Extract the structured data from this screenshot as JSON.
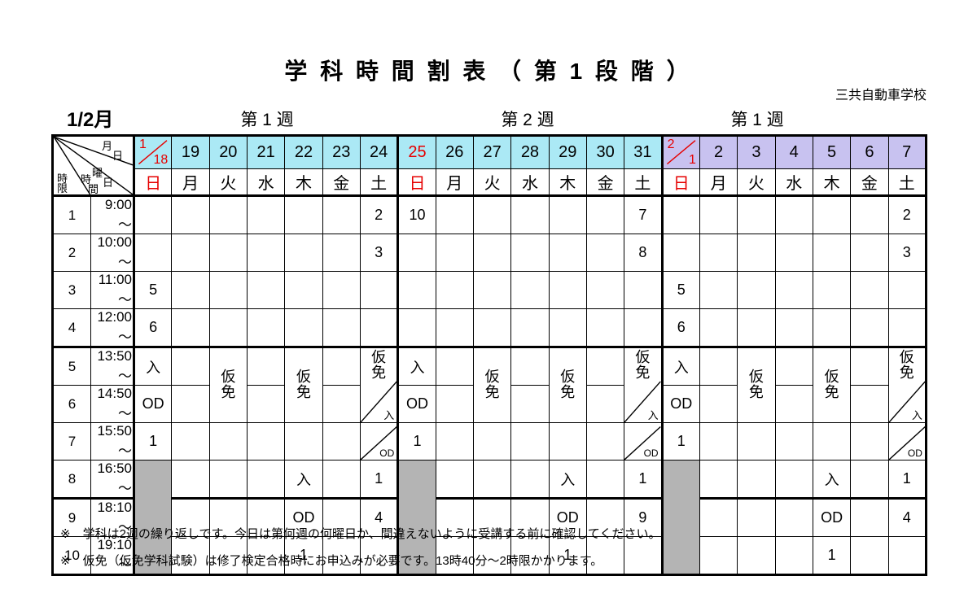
{
  "title": "学 科 時 間 割 表 （ 第 1 段 階 ）",
  "school_name": "三共自動車学校",
  "month_label": "1/2月",
  "week_labels": [
    "第 1 週",
    "第 2 週",
    "第 1 週"
  ],
  "corner_labels": {
    "month_day": "月日",
    "weekday": "曜日",
    "time": "時間",
    "period": "時限"
  },
  "colors": {
    "cyan": "#abe9f5",
    "purple": "#c8c2f0",
    "red": "#e60000",
    "gray": "#b4b4b4"
  },
  "date_row": [
    {
      "text": "1/18",
      "split": [
        "1",
        "18"
      ],
      "red": true,
      "bg": "cyan"
    },
    {
      "text": "19",
      "bg": "cyan"
    },
    {
      "text": "20",
      "bg": "cyan"
    },
    {
      "text": "21",
      "bg": "cyan"
    },
    {
      "text": "22",
      "bg": "cyan"
    },
    {
      "text": "23",
      "bg": "cyan"
    },
    {
      "text": "24",
      "bg": "cyan"
    },
    {
      "text": "25",
      "red": true,
      "bg": "cyan"
    },
    {
      "text": "26",
      "bg": "cyan"
    },
    {
      "text": "27",
      "bg": "cyan"
    },
    {
      "text": "28",
      "bg": "cyan"
    },
    {
      "text": "29",
      "bg": "cyan"
    },
    {
      "text": "30",
      "bg": "cyan"
    },
    {
      "text": "31",
      "bg": "cyan"
    },
    {
      "text": "2/1",
      "split": [
        "2",
        "1"
      ],
      "red": true,
      "bg": "purple"
    },
    {
      "text": "2",
      "bg": "purple"
    },
    {
      "text": "3",
      "bg": "purple"
    },
    {
      "text": "4",
      "bg": "purple"
    },
    {
      "text": "5",
      "bg": "purple"
    },
    {
      "text": "6",
      "bg": "purple"
    },
    {
      "text": "7",
      "bg": "purple"
    }
  ],
  "day_row": [
    {
      "text": "日",
      "red": true
    },
    {
      "text": "月"
    },
    {
      "text": "火"
    },
    {
      "text": "水"
    },
    {
      "text": "木"
    },
    {
      "text": "金"
    },
    {
      "text": "土"
    },
    {
      "text": "日",
      "red": true
    },
    {
      "text": "月"
    },
    {
      "text": "火"
    },
    {
      "text": "水"
    },
    {
      "text": "木"
    },
    {
      "text": "金"
    },
    {
      "text": "土"
    },
    {
      "text": "日",
      "red": true
    },
    {
      "text": "月"
    },
    {
      "text": "火"
    },
    {
      "text": "水"
    },
    {
      "text": "木"
    },
    {
      "text": "金"
    },
    {
      "text": "土"
    }
  ],
  "periods": [
    {
      "no": "1",
      "time": "9:00～"
    },
    {
      "no": "2",
      "time": "10:00～"
    },
    {
      "no": "3",
      "time": "11:00～"
    },
    {
      "no": "4",
      "time": "12:00～"
    },
    {
      "no": "5",
      "time": "13:50～"
    },
    {
      "no": "6",
      "time": "14:50～"
    },
    {
      "no": "7",
      "time": "15:50～"
    },
    {
      "no": "8",
      "time": "16:50～"
    },
    {
      "no": "9",
      "time": "18:10～"
    },
    {
      "no": "10",
      "time": "19:10～"
    }
  ],
  "tokens": {
    "KM": "仮免",
    "KMX_main": "仮免",
    "KMX_sub": "入",
    "DG_sub": "OD"
  },
  "grid": [
    [
      "",
      "",
      "",
      "",
      "",
      "",
      "2",
      "10",
      "",
      "",
      "",
      "",
      "",
      "7",
      "",
      "",
      "",
      "",
      "",
      "",
      "2"
    ],
    [
      "",
      "",
      "",
      "",
      "",
      "",
      "3",
      "",
      "",
      "",
      "",
      "",
      "",
      "8",
      "",
      "",
      "",
      "",
      "",
      "",
      "3"
    ],
    [
      "5",
      "",
      "",
      "",
      "",
      "",
      "",
      "",
      "",
      "",
      "",
      "",
      "",
      "",
      "5",
      "",
      "",
      "",
      "",
      "",
      ""
    ],
    [
      "6",
      "",
      "",
      "",
      "",
      "",
      "",
      "",
      "",
      "",
      "",
      "",
      "",
      "",
      "6",
      "",
      "",
      "",
      "",
      "",
      ""
    ],
    [
      "入",
      "",
      "KM",
      "",
      "KM",
      "",
      "KMX",
      "入",
      "",
      "KM",
      "",
      "KM",
      "",
      "KMX",
      "入",
      "",
      "KM",
      "",
      "KM",
      "",
      "KMX"
    ],
    [
      "OD",
      "",
      "SKIP",
      "",
      "SKIP",
      "",
      "SKIP",
      "OD",
      "",
      "SKIP",
      "",
      "SKIP",
      "",
      "SKIP",
      "OD",
      "",
      "SKIP",
      "",
      "SKIP",
      "",
      "SKIP"
    ],
    [
      "1",
      "",
      "",
      "",
      "",
      "",
      "DG",
      "1",
      "",
      "",
      "",
      "",
      "",
      "DG",
      "1",
      "",
      "",
      "",
      "",
      "",
      "DG"
    ],
    [
      "GRAY",
      "",
      "",
      "",
      "入",
      "",
      "1",
      "GRAY",
      "",
      "",
      "",
      "入",
      "",
      "1",
      "GRAY",
      "",
      "",
      "",
      "入",
      "",
      "1"
    ],
    [
      "SKIP",
      "",
      "",
      "",
      "OD",
      "",
      "4",
      "SKIP",
      "",
      "",
      "",
      "OD",
      "",
      "9",
      "SKIP",
      "",
      "",
      "",
      "OD",
      "",
      "4"
    ],
    [
      "SKIP",
      "",
      "",
      "",
      "1",
      "",
      "",
      "SKIP",
      "",
      "",
      "",
      "1",
      "",
      "",
      "SKIP",
      "",
      "",
      "",
      "1",
      "",
      ""
    ]
  ],
  "notes": [
    "※　学科は2週の繰り返しです。今日は第何週の何曜日か、間違えないように受講する前に確認してください。",
    "※　仮免（仮免学科試験）は修了検定合格時にお申込みが必要です。13時40分～2時限かかります。"
  ]
}
